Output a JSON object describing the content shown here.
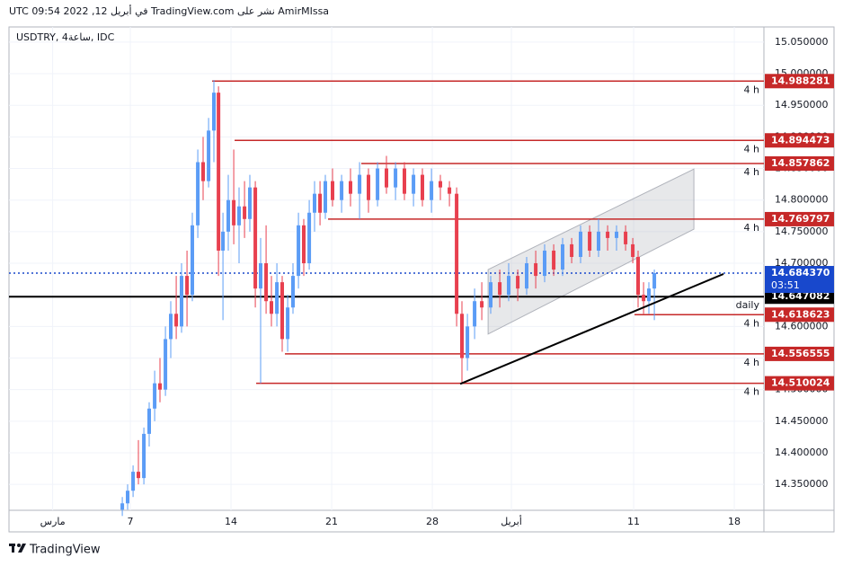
{
  "chart_data": {
    "type": "candlestick",
    "title": "AmirMIssa نشر على TradingView.com في أبريل 12, 2022 09:54 UTC",
    "subtitle": "USDTRY, 4ساعة, IDC",
    "brand": "TradingView",
    "up_color": "#5b9cf6",
    "down_color": "#e8404f",
    "xlim": [
      -1.44,
      51.06
    ],
    "xticks": [
      {
        "value": 1.6,
        "label": "مارس"
      },
      7,
      14,
      21,
      28,
      {
        "value": 33.5,
        "label": "أبريل"
      },
      {
        "value": 42,
        "label": "11"
      },
      {
        "value": 49,
        "label": "18"
      }
    ],
    "ylim": [
      14.309,
      15.074
    ],
    "yticks": [
      {
        "value": 14.35,
        "label": "14.350000"
      },
      {
        "value": 14.4,
        "label": "14.400000"
      },
      {
        "value": 14.45,
        "label": "14.450000"
      },
      {
        "value": 14.5,
        "label": "14.500000"
      },
      {
        "value": 14.55,
        "label": "14.550000"
      },
      {
        "value": 14.6,
        "label": "14.600000"
      },
      {
        "value": 14.65,
        "label": "14.650000"
      },
      {
        "value": 14.7,
        "label": "14.700000"
      },
      {
        "value": 14.75,
        "label": "14.750000"
      },
      {
        "value": 14.8,
        "label": "14.800000"
      },
      {
        "value": 14.85,
        "label": "14.850000"
      },
      {
        "value": 14.9,
        "label": "14.900000"
      },
      {
        "value": 14.95,
        "label": "14.950000"
      },
      {
        "value": 15.0,
        "label": "15.000000"
      },
      {
        "value": 15.05,
        "label": "15.050000"
      }
    ],
    "grid": true,
    "x": [
      6.44,
      6.81,
      7.19,
      7.56,
      7.94,
      8.31,
      8.69,
      9.06,
      9.44,
      9.81,
      10.19,
      10.56,
      10.94,
      11.31,
      11.69,
      12.06,
      12.44,
      12.81,
      13.13,
      13.44,
      13.81,
      14.19,
      14.56,
      14.94,
      15.31,
      15.69,
      16.06,
      16.44,
      16.81,
      17.19,
      17.56,
      17.94,
      18.31,
      18.69,
      19.06,
      19.44,
      19.81,
      20.19,
      20.56,
      21.06,
      21.69,
      22.31,
      22.94,
      23.56,
      24.19,
      24.81,
      25.44,
      26.06,
      26.69,
      27.31,
      27.94,
      28.56,
      29.19,
      29.69,
      30.06,
      30.44,
      30.94,
      31.44,
      32.06,
      32.69,
      33.31,
      33.94,
      34.56,
      35.19,
      35.81,
      36.44,
      37.06,
      37.69,
      38.31,
      38.94,
      39.56,
      40.19,
      40.81,
      41.44,
      41.94,
      42.31,
      42.69,
      43.06,
      43.44
    ],
    "open": [
      14.31,
      14.32,
      14.34,
      14.37,
      14.36,
      14.43,
      14.47,
      14.51,
      14.5,
      14.58,
      14.62,
      14.6,
      14.68,
      14.65,
      14.76,
      14.86,
      14.83,
      14.91,
      14.97,
      14.72,
      14.75,
      14.8,
      14.76,
      14.79,
      14.77,
      14.82,
      14.66,
      14.7,
      14.64,
      14.62,
      14.67,
      14.58,
      14.63,
      14.68,
      14.76,
      14.7,
      14.78,
      14.81,
      14.78,
      14.83,
      14.8,
      14.83,
      14.81,
      14.84,
      14.8,
      14.85,
      14.82,
      14.85,
      14.81,
      14.84,
      14.8,
      14.83,
      14.82,
      14.81,
      14.62,
      14.55,
      14.6,
      14.64,
      14.63,
      14.67,
      14.65,
      14.68,
      14.66,
      14.7,
      14.68,
      14.72,
      14.69,
      14.73,
      14.71,
      14.75,
      14.72,
      14.75,
      14.74,
      14.75,
      14.73,
      14.71,
      14.65,
      14.64,
      14.66
    ],
    "high": [
      14.33,
      14.35,
      14.38,
      14.42,
      14.44,
      14.48,
      14.53,
      14.55,
      14.6,
      14.64,
      14.68,
      14.7,
      14.72,
      14.78,
      14.88,
      14.9,
      14.93,
      14.99,
      14.98,
      14.78,
      14.84,
      14.88,
      14.82,
      14.83,
      14.84,
      14.83,
      14.74,
      14.76,
      14.68,
      14.7,
      14.68,
      14.65,
      14.7,
      14.78,
      14.77,
      14.8,
      14.83,
      14.83,
      14.84,
      14.85,
      14.84,
      14.85,
      14.86,
      14.85,
      14.86,
      14.87,
      14.86,
      14.86,
      14.85,
      14.85,
      14.85,
      14.84,
      14.83,
      14.82,
      14.64,
      14.62,
      14.66,
      14.67,
      14.68,
      14.69,
      14.7,
      14.69,
      14.71,
      14.72,
      14.73,
      14.73,
      14.74,
      14.74,
      14.76,
      14.76,
      14.77,
      14.76,
      14.76,
      14.76,
      14.74,
      14.72,
      14.67,
      14.67,
      14.69
    ],
    "low": [
      14.3,
      14.31,
      14.33,
      14.35,
      14.35,
      14.41,
      14.45,
      14.48,
      14.49,
      14.55,
      14.58,
      14.59,
      14.6,
      14.64,
      14.74,
      14.8,
      14.82,
      14.86,
      14.68,
      14.61,
      14.72,
      14.73,
      14.7,
      14.74,
      14.75,
      14.63,
      14.51,
      14.62,
      14.6,
      14.6,
      14.56,
      14.56,
      14.62,
      14.66,
      14.68,
      14.69,
      14.75,
      14.76,
      14.77,
      14.79,
      14.78,
      14.79,
      14.77,
      14.78,
      14.79,
      14.81,
      14.8,
      14.8,
      14.79,
      14.79,
      14.78,
      14.8,
      14.79,
      14.6,
      14.51,
      14.53,
      14.58,
      14.61,
      14.62,
      14.63,
      14.64,
      14.64,
      14.65,
      14.66,
      14.67,
      14.68,
      14.68,
      14.7,
      14.7,
      14.71,
      14.71,
      14.72,
      14.72,
      14.72,
      14.7,
      14.63,
      14.62,
      14.62,
      14.61
    ],
    "close": [
      14.32,
      14.34,
      14.37,
      14.36,
      14.43,
      14.47,
      14.51,
      14.5,
      14.58,
      14.62,
      14.6,
      14.68,
      14.65,
      14.76,
      14.86,
      14.83,
      14.91,
      14.97,
      14.72,
      14.75,
      14.8,
      14.76,
      14.79,
      14.77,
      14.82,
      14.66,
      14.7,
      14.64,
      14.62,
      14.67,
      14.58,
      14.63,
      14.68,
      14.76,
      14.7,
      14.78,
      14.81,
      14.78,
      14.83,
      14.8,
      14.83,
      14.81,
      14.84,
      14.8,
      14.85,
      14.82,
      14.85,
      14.81,
      14.84,
      14.8,
      14.83,
      14.82,
      14.81,
      14.62,
      14.55,
      14.6,
      14.64,
      14.63,
      14.67,
      14.65,
      14.68,
      14.66,
      14.7,
      14.68,
      14.72,
      14.69,
      14.73,
      14.71,
      14.75,
      14.72,
      14.75,
      14.74,
      14.75,
      14.73,
      14.71,
      14.65,
      14.64,
      14.66,
      14.68437
    ],
    "level_color": "#c62828",
    "levels": [
      {
        "value": 14.988281,
        "x": 12.69,
        "label": "4 h"
      },
      {
        "value": 14.894473,
        "x": 14.25,
        "label": "4 h"
      },
      {
        "value": 14.857862,
        "x": 23.06,
        "label": "4 h"
      },
      {
        "value": 14.769797,
        "x": 20.75,
        "label": "4 h"
      },
      {
        "value": 14.618623,
        "x": 42.06,
        "label": "4 h"
      },
      {
        "value": 14.556555,
        "x": 17.75,
        "label": "4 h"
      },
      {
        "value": 14.510024,
        "x": 15.75,
        "label": "4 h"
      }
    ],
    "daily": {
      "value": 14.647082,
      "label": "daily",
      "color": "#000000"
    },
    "current": {
      "value": 14.68437,
      "label": "14.684370",
      "countdown": "03:51",
      "color": "#1848cc"
    },
    "trendline": {
      "x": [
        29.94,
        48.25
      ],
      "y": [
        14.509,
        14.683
      ],
      "color": "#000000"
    },
    "channel": {
      "x": [
        31.88,
        46.19
      ],
      "upper": [
        14.69,
        14.849
      ],
      "lower": [
        14.588,
        14.754
      ],
      "color": "#b0b3bb"
    }
  }
}
